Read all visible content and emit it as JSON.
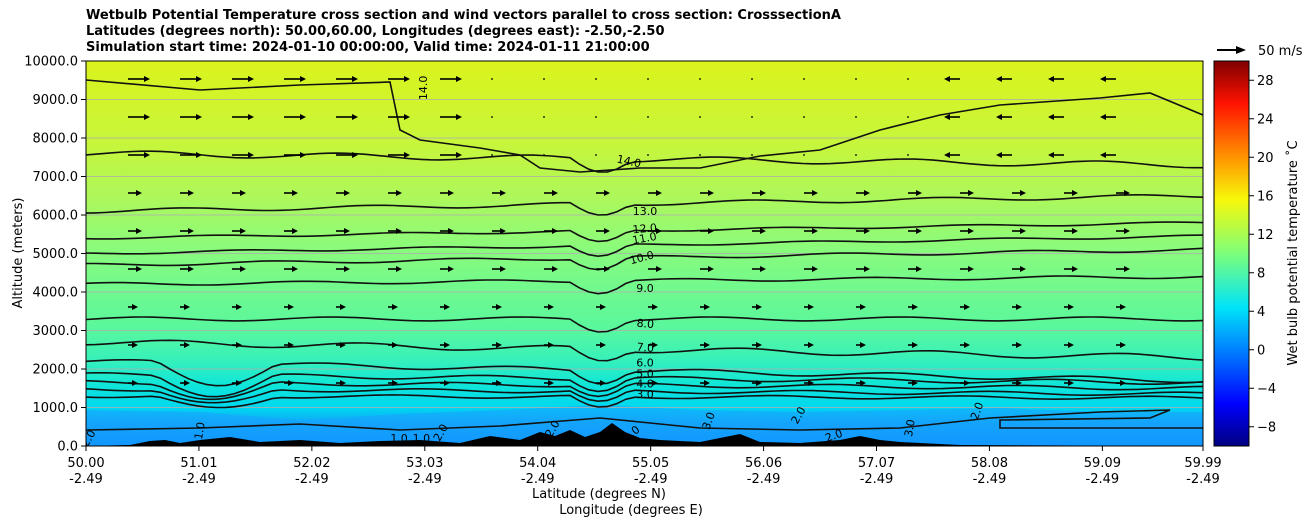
{
  "chart_data": {
    "type": "heatmap",
    "title_lines": [
      "Wetbulb Potential Temperature cross section and wind vectors parallel to cross section: CrosssectionA",
      "Latitudes (degrees north): 50.00,60.00, Longitudes (degrees east): -2.50,-2.50",
      "Simulation start time: 2024-01-10 00:00:00, Valid time: 2024-01-11 21:00:00"
    ],
    "ylabel": "Altitude (meters)",
    "xlabel_lat": "Latitude (degrees N)",
    "xlabel_lon": "Longitude (degrees E)",
    "x_ticks_lat": [
      "50.00",
      "51.01",
      "52.02",
      "53.03",
      "54.04",
      "55.05",
      "56.06",
      "57.07",
      "58.08",
      "59.09",
      "59.99"
    ],
    "x_ticks_lon": [
      "-2.49",
      "-2.49",
      "-2.49",
      "-2.49",
      "-2.49",
      "-2.49",
      "-2.49",
      "-2.49",
      "-2.49",
      "-2.49",
      "-2.49"
    ],
    "y_ticks": [
      "0.0",
      "1000.0",
      "2000.0",
      "3000.0",
      "4000.0",
      "5000.0",
      "6000.0",
      "7000.0",
      "8000.0",
      "9000.0",
      "10000.0"
    ],
    "ylim": [
      0,
      10000
    ],
    "xlim": [
      50.0,
      59.99
    ],
    "grid": "horizontal",
    "colorbar": {
      "label": "Wet bulb potential temperature $^\\circ$C",
      "label_display": "Wet bulb potential temperature ˚C",
      "ticks": [
        "−8",
        "−4",
        "0",
        "4",
        "8",
        "12",
        "16",
        "20",
        "24",
        "28"
      ],
      "range": [
        -10,
        30
      ],
      "colormap": "jet"
    },
    "quiver_key": {
      "label": "50 m/s"
    },
    "contour_labels": [
      {
        "text": "14.0",
        "lat": 53.05,
        "alt": 9300,
        "rot": -90
      },
      {
        "text": "14.0",
        "lat": 54.85,
        "alt": 7300,
        "rot": 12
      },
      {
        "text": "13.0",
        "lat": 55.0,
        "alt": 6000,
        "rot": 0
      },
      {
        "text": "12.0",
        "lat": 55.0,
        "alt": 5550,
        "rot": -5
      },
      {
        "text": "11.0",
        "lat": 55.0,
        "alt": 5300,
        "rot": -10
      },
      {
        "text": "10.0",
        "lat": 54.98,
        "alt": 4800,
        "rot": -15
      },
      {
        "text": "9.0",
        "lat": 55.0,
        "alt": 4000,
        "rot": 0
      },
      {
        "text": "8.0",
        "lat": 55.0,
        "alt": 3080,
        "rot": 5
      },
      {
        "text": "7.0",
        "lat": 55.0,
        "alt": 2460,
        "rot": 5
      },
      {
        "text": "6.0",
        "lat": 55.0,
        "alt": 2060,
        "rot": 0
      },
      {
        "text": "5.0",
        "lat": 55.0,
        "alt": 1780,
        "rot": 0
      },
      {
        "text": "4.0",
        "lat": 55.0,
        "alt": 1520,
        "rot": 0
      },
      {
        "text": "3.0",
        "lat": 55.0,
        "alt": 1250,
        "rot": 0
      },
      {
        "text": "3.0",
        "lat": 55.6,
        "alt": 620,
        "rot": -70
      },
      {
        "text": "2.0",
        "lat": 56.4,
        "alt": 750,
        "rot": -60
      },
      {
        "text": "2.0",
        "lat": 56.7,
        "alt": 180,
        "rot": -20
      },
      {
        "text": "3.0",
        "lat": 57.4,
        "alt": 450,
        "rot": -80
      },
      {
        "text": "2.0",
        "lat": 58.0,
        "alt": 880,
        "rot": -70
      },
      {
        "text": "2.0",
        "lat": 54.9,
        "alt": 250,
        "rot": -40
      },
      {
        "text": "1.0",
        "lat": 51.05,
        "alt": 380,
        "rot": -80
      },
      {
        "text": "1.0",
        "lat": 52.8,
        "alt": 100,
        "rot": 0
      },
      {
        "text": "1.0",
        "lat": 53.0,
        "alt": 100,
        "rot": 0
      },
      {
        "text": "2.0",
        "lat": 53.2,
        "alt": 300,
        "rot": -60
      },
      {
        "text": "2.0",
        "lat": 54.2,
        "alt": 400,
        "rot": -60
      },
      {
        "text": "2.0",
        "lat": 54.7,
        "alt": 250,
        "rot": -60
      },
      {
        "text": "2.0",
        "lat": 50.05,
        "alt": 150,
        "rot": -60
      }
    ]
  }
}
